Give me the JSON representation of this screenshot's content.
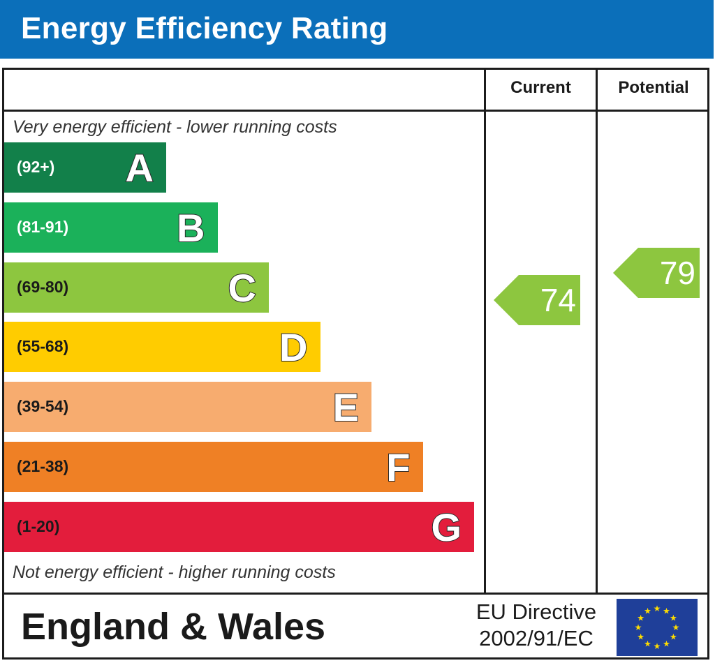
{
  "title": "Energy Efficiency Rating",
  "columns": {
    "current": "Current",
    "potential": "Potential"
  },
  "captions": {
    "top": "Very energy efficient - lower running costs",
    "bottom": "Not energy efficient - higher running costs"
  },
  "footer": {
    "region": "England & Wales",
    "directive_line1": "EU Directive",
    "directive_line2": "2002/91/EC",
    "flag_icon": "eu-flag-icon"
  },
  "chart_data": {
    "type": "bar",
    "title": "Energy Efficiency Rating",
    "categories": [
      "A",
      "B",
      "C",
      "D",
      "E",
      "F",
      "G"
    ],
    "ranges": [
      "(92+)",
      "(81-91)",
      "(69-80)",
      "(55-68)",
      "(39-54)",
      "(21-38)",
      "(1-20)"
    ],
    "colors": [
      "#12804a",
      "#1bb15a",
      "#8dc63f",
      "#ffcc00",
      "#f7ac6f",
      "#ef8025",
      "#e31d3c"
    ],
    "range_colors": [
      "#ffffff",
      "#ffffff",
      "#1a1a1a",
      "#1a1a1a",
      "#1a1a1a",
      "#1a1a1a",
      "#1a1a1a"
    ],
    "current": 74,
    "potential": 79,
    "rating_color": "#8dc63f"
  }
}
